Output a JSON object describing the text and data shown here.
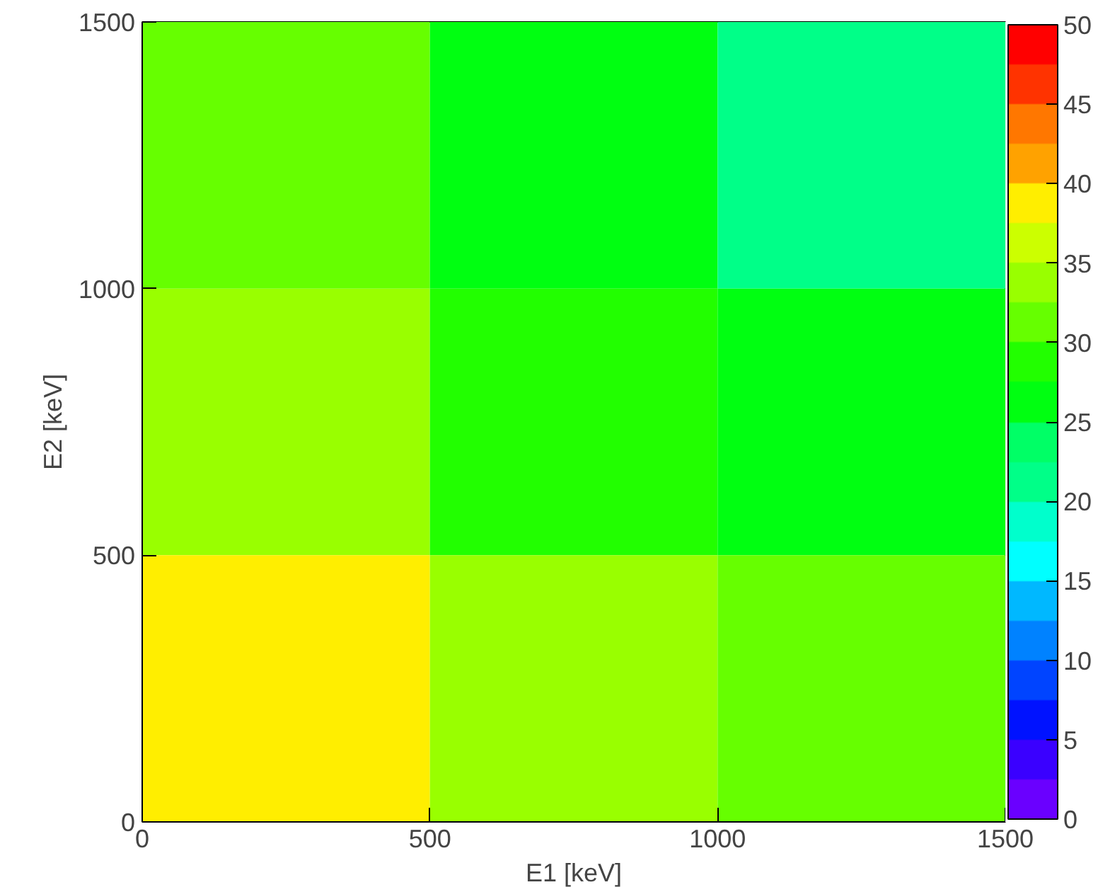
{
  "chart_data": {
    "type": "heatmap",
    "xlabel": "E1 [keV]",
    "ylabel": "E2 [keV]",
    "xlim": [
      0,
      1500
    ],
    "ylim": [
      0,
      1500
    ],
    "xticks": [
      0,
      500,
      1000,
      1500
    ],
    "yticks": [
      0,
      500,
      1000,
      1500
    ],
    "cells": [
      [
        31,
        26,
        21
      ],
      [
        33.5,
        28.5,
        26
      ],
      [
        38.5,
        33.5,
        31
      ]
    ],
    "clim": [
      0,
      50
    ],
    "cticks": [
      0,
      5,
      10,
      15,
      20,
      25,
      30,
      35,
      40,
      45,
      50
    ]
  }
}
